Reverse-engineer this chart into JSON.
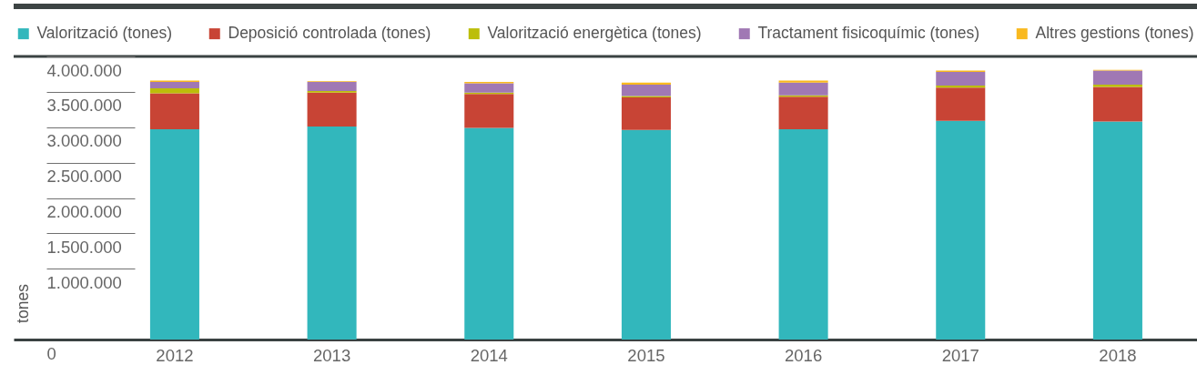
{
  "chart_data": {
    "type": "bar",
    "stacked": true,
    "legend": "top",
    "grid": "y",
    "ylabel": "tones",
    "categories": [
      "2012",
      "2013",
      "2014",
      "2015",
      "2016",
      "2017",
      "2018"
    ],
    "ylim": [
      0,
      4000000
    ],
    "yticks": [
      0,
      {
        "value": 1000000,
        "label": "1.000.000"
      },
      {
        "value": 1500000,
        "label": "1.500.000"
      },
      {
        "value": 2000000,
        "label": "2.000.000"
      },
      {
        "value": 2500000,
        "label": "2.500.000"
      },
      {
        "value": 3000000,
        "label": "3.000.000"
      },
      {
        "value": 3500000,
        "label": "3.500.000"
      },
      {
        "value": 4000000,
        "label": "4.000.000"
      }
    ],
    "series": [
      {
        "name": "Valorització (tones)",
        "color": "#32b7bc",
        "values": [
          2970000,
          3010000,
          2990000,
          2960000,
          2970000,
          3090000,
          3080000
        ]
      },
      {
        "name": "Deposició controlada (tones)",
        "color": "#c84435",
        "values": [
          510000,
          480000,
          480000,
          460000,
          460000,
          470000,
          490000
        ]
      },
      {
        "name": "Valorització energètica (tones)",
        "color": "#bcbe0a",
        "values": [
          70000,
          20000,
          20000,
          20000,
          20000,
          30000,
          30000
        ]
      },
      {
        "name": "Tractament fisicoquímic (tones)",
        "color": "#a078b4",
        "values": [
          90000,
          130000,
          130000,
          160000,
          180000,
          190000,
          200000
        ]
      },
      {
        "name": "Altres gestions (tones)",
        "color": "#f9b91f",
        "values": [
          20000,
          10000,
          20000,
          30000,
          30000,
          20000,
          10000
        ]
      }
    ]
  }
}
